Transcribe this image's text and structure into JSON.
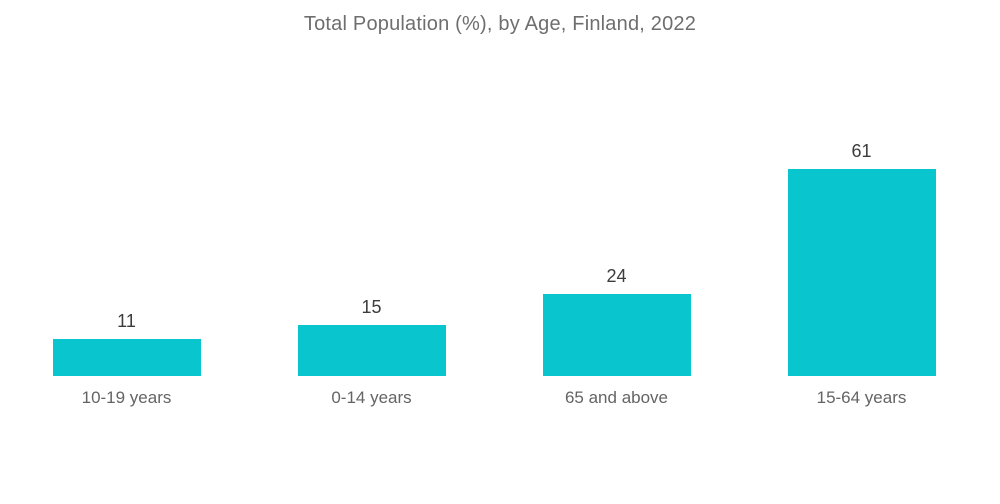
{
  "chart_data": {
    "type": "bar",
    "title": "Total Population (%), by Age, Finland, 2022",
    "categories": [
      "10-19 years",
      "0-14 years",
      "65 and above",
      "15-64 years"
    ],
    "values": [
      11,
      15,
      24,
      61
    ],
    "xlabel": "",
    "ylabel": "",
    "ylim": [
      0,
      65
    ],
    "grid": false,
    "legend": false,
    "axes_visible": false,
    "background_color": "#ffffff",
    "bar_color": "#09c6ce",
    "title_color": "#6e6e6e",
    "value_label_color": "#3c3c3c",
    "category_label_color": "#646464"
  }
}
